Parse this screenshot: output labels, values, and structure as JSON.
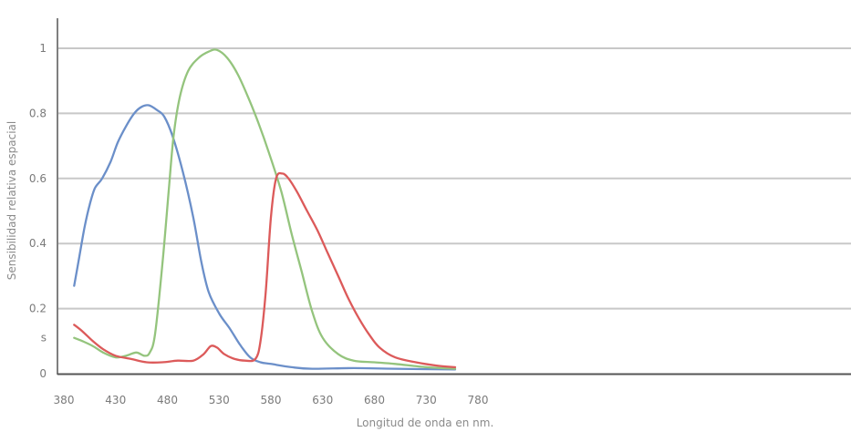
{
  "chart_data": {
    "type": "line",
    "title": "",
    "xlabel": "Longitud de onda en nm.",
    "ylabel": "Sensibilidad relativa espacial",
    "xlim": [
      380,
      930
    ],
    "ylim": [
      0,
      1.1
    ],
    "x_ticks": [
      "380",
      "430",
      "480",
      "530",
      "580",
      "630",
      "680",
      "730",
      "780"
    ],
    "y_ticks": [
      {
        "value": 0,
        "label": "0"
      },
      {
        "value": 0.11,
        "label": "s"
      },
      {
        "value": 0.2,
        "label": "0.2"
      },
      {
        "value": 0.4,
        "label": "0.4"
      },
      {
        "value": 0.6,
        "label": "0.6"
      },
      {
        "value": 0.8,
        "label": "0.8"
      },
      {
        "value": 1.0,
        "label": "1"
      }
    ],
    "grid_values": [
      0.2,
      0.4,
      0.6,
      0.8,
      1.0
    ],
    "grid": true,
    "legend": "none",
    "series": [
      {
        "color": "#6b8fc9",
        "points": [
          [
            390,
            0.27
          ],
          [
            395,
            0.36
          ],
          [
            400,
            0.45
          ],
          [
            405,
            0.52
          ],
          [
            410,
            0.57
          ],
          [
            417,
            0.6
          ],
          [
            425,
            0.65
          ],
          [
            432,
            0.71
          ],
          [
            440,
            0.76
          ],
          [
            448,
            0.8
          ],
          [
            455,
            0.82
          ],
          [
            462,
            0.825
          ],
          [
            470,
            0.81
          ],
          [
            477,
            0.79
          ],
          [
            485,
            0.73
          ],
          [
            495,
            0.62
          ],
          [
            505,
            0.48
          ],
          [
            513,
            0.34
          ],
          [
            520,
            0.25
          ],
          [
            530,
            0.185
          ],
          [
            540,
            0.14
          ],
          [
            550,
            0.09
          ],
          [
            560,
            0.05
          ],
          [
            570,
            0.035
          ],
          [
            580,
            0.03
          ],
          [
            600,
            0.02
          ],
          [
            620,
            0.015
          ],
          [
            660,
            0.017
          ],
          [
            700,
            0.015
          ],
          [
            758,
            0.013
          ]
        ]
      },
      {
        "color": "#94c47d",
        "points": [
          [
            390,
            0.11
          ],
          [
            398,
            0.1
          ],
          [
            408,
            0.085
          ],
          [
            418,
            0.065
          ],
          [
            430,
            0.05
          ],
          [
            440,
            0.055
          ],
          [
            450,
            0.065
          ],
          [
            458,
            0.055
          ],
          [
            463,
            0.065
          ],
          [
            468,
            0.12
          ],
          [
            475,
            0.33
          ],
          [
            481,
            0.55
          ],
          [
            486,
            0.73
          ],
          [
            492,
            0.85
          ],
          [
            500,
            0.93
          ],
          [
            510,
            0.97
          ],
          [
            520,
            0.99
          ],
          [
            528,
            0.995
          ],
          [
            538,
            0.97
          ],
          [
            548,
            0.92
          ],
          [
            558,
            0.85
          ],
          [
            568,
            0.77
          ],
          [
            578,
            0.68
          ],
          [
            590,
            0.56
          ],
          [
            600,
            0.43
          ],
          [
            610,
            0.31
          ],
          [
            620,
            0.19
          ],
          [
            630,
            0.11
          ],
          [
            645,
            0.06
          ],
          [
            660,
            0.04
          ],
          [
            680,
            0.035
          ],
          [
            700,
            0.03
          ],
          [
            730,
            0.02
          ],
          [
            758,
            0.015
          ]
        ]
      },
      {
        "color": "#dc5a5a",
        "points": [
          [
            390,
            0.15
          ],
          [
            398,
            0.13
          ],
          [
            408,
            0.1
          ],
          [
            418,
            0.075
          ],
          [
            430,
            0.055
          ],
          [
            445,
            0.045
          ],
          [
            460,
            0.035
          ],
          [
            475,
            0.035
          ],
          [
            490,
            0.04
          ],
          [
            505,
            0.04
          ],
          [
            515,
            0.06
          ],
          [
            522,
            0.085
          ],
          [
            528,
            0.08
          ],
          [
            535,
            0.06
          ],
          [
            545,
            0.045
          ],
          [
            555,
            0.04
          ],
          [
            565,
            0.045
          ],
          [
            570,
            0.1
          ],
          [
            575,
            0.25
          ],
          [
            580,
            0.48
          ],
          [
            585,
            0.6
          ],
          [
            591,
            0.615
          ],
          [
            597,
            0.6
          ],
          [
            605,
            0.56
          ],
          [
            615,
            0.5
          ],
          [
            625,
            0.44
          ],
          [
            635,
            0.37
          ],
          [
            645,
            0.3
          ],
          [
            655,
            0.23
          ],
          [
            665,
            0.17
          ],
          [
            675,
            0.12
          ],
          [
            685,
            0.08
          ],
          [
            700,
            0.05
          ],
          [
            720,
            0.035
          ],
          [
            740,
            0.025
          ],
          [
            758,
            0.02
          ]
        ]
      }
    ]
  }
}
